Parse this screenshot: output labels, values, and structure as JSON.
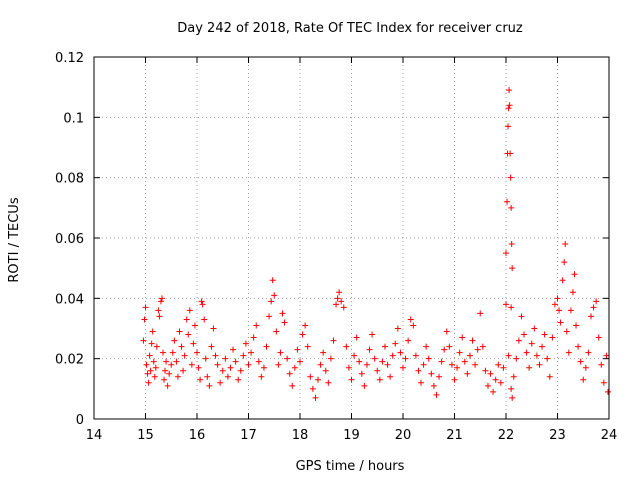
{
  "chart_data": {
    "type": "scatter",
    "title": "Day 242 of 2018, Rate Of TEC Index for receiver cruz",
    "xlabel": "GPS time / hours",
    "ylabel": "ROTI / TECUs",
    "xlim": [
      14,
      24
    ],
    "ylim": [
      0,
      0.12
    ],
    "x_ticks": [
      14,
      15,
      16,
      17,
      18,
      19,
      20,
      21,
      22,
      23,
      24
    ],
    "y_ticks": [
      0,
      0.02,
      0.04,
      0.06,
      0.08,
      0.1,
      0.12
    ],
    "x_tick_labels": [
      "14",
      "15",
      "16",
      "17",
      "18",
      "19",
      "20",
      "21",
      "22",
      "23",
      "24"
    ],
    "y_tick_labels": [
      "0",
      "0.02",
      "0.04",
      "0.06",
      "0.08",
      "0.1",
      "0.12"
    ],
    "grid": true,
    "marker": "+",
    "marker_color": "#ff0000",
    "series": [
      {
        "name": "ROTI",
        "points": [
          [
            14.96,
            0.026
          ],
          [
            14.98,
            0.033
          ],
          [
            15.0,
            0.037
          ],
          [
            15.02,
            0.018
          ],
          [
            15.04,
            0.015
          ],
          [
            15.06,
            0.012
          ],
          [
            15.08,
            0.021
          ],
          [
            15.1,
            0.016
          ],
          [
            15.12,
            0.025
          ],
          [
            15.14,
            0.029
          ],
          [
            15.16,
            0.019
          ],
          [
            15.18,
            0.014
          ],
          [
            15.2,
            0.017
          ],
          [
            15.22,
            0.024
          ],
          [
            15.25,
            0.036
          ],
          [
            15.27,
            0.034
          ],
          [
            15.3,
            0.039
          ],
          [
            15.32,
            0.04
          ],
          [
            15.34,
            0.022
          ],
          [
            15.36,
            0.013
          ],
          [
            15.38,
            0.016
          ],
          [
            15.4,
            0.019
          ],
          [
            15.43,
            0.011
          ],
          [
            15.46,
            0.015
          ],
          [
            15.5,
            0.018
          ],
          [
            15.53,
            0.022
          ],
          [
            15.56,
            0.026
          ],
          [
            15.6,
            0.019
          ],
          [
            15.63,
            0.014
          ],
          [
            15.66,
            0.029
          ],
          [
            15.7,
            0.024
          ],
          [
            15.73,
            0.016
          ],
          [
            15.76,
            0.021
          ],
          [
            15.8,
            0.033
          ],
          [
            15.83,
            0.028
          ],
          [
            15.86,
            0.036
          ],
          [
            15.9,
            0.018
          ],
          [
            15.93,
            0.025
          ],
          [
            15.96,
            0.031
          ],
          [
            16.0,
            0.022
          ],
          [
            16.03,
            0.017
          ],
          [
            16.06,
            0.013
          ],
          [
            16.09,
            0.039
          ],
          [
            16.11,
            0.038
          ],
          [
            16.14,
            0.033
          ],
          [
            16.17,
            0.02
          ],
          [
            16.2,
            0.014
          ],
          [
            16.24,
            0.011
          ],
          [
            16.28,
            0.024
          ],
          [
            16.32,
            0.03
          ],
          [
            16.36,
            0.021
          ],
          [
            16.4,
            0.018
          ],
          [
            16.45,
            0.012
          ],
          [
            16.5,
            0.016
          ],
          [
            16.55,
            0.02
          ],
          [
            16.6,
            0.014
          ],
          [
            16.65,
            0.017
          ],
          [
            16.7,
            0.023
          ],
          [
            16.75,
            0.019
          ],
          [
            16.8,
            0.013
          ],
          [
            16.85,
            0.016
          ],
          [
            16.9,
            0.021
          ],
          [
            16.95,
            0.025
          ],
          [
            17.0,
            0.018
          ],
          [
            17.05,
            0.022
          ],
          [
            17.1,
            0.027
          ],
          [
            17.15,
            0.031
          ],
          [
            17.2,
            0.019
          ],
          [
            17.25,
            0.014
          ],
          [
            17.3,
            0.017
          ],
          [
            17.35,
            0.024
          ],
          [
            17.4,
            0.034
          ],
          [
            17.44,
            0.039
          ],
          [
            17.47,
            0.046
          ],
          [
            17.5,
            0.041
          ],
          [
            17.54,
            0.029
          ],
          [
            17.58,
            0.018
          ],
          [
            17.62,
            0.022
          ],
          [
            17.66,
            0.035
          ],
          [
            17.7,
            0.032
          ],
          [
            17.75,
            0.02
          ],
          [
            17.8,
            0.015
          ],
          [
            17.85,
            0.011
          ],
          [
            17.9,
            0.017
          ],
          [
            17.95,
            0.023
          ],
          [
            18.0,
            0.019
          ],
          [
            18.05,
            0.028
          ],
          [
            18.1,
            0.031
          ],
          [
            18.15,
            0.024
          ],
          [
            18.2,
            0.014
          ],
          [
            18.25,
            0.01
          ],
          [
            18.3,
            0.007
          ],
          [
            18.35,
            0.013
          ],
          [
            18.4,
            0.018
          ],
          [
            18.45,
            0.022
          ],
          [
            18.5,
            0.016
          ],
          [
            18.55,
            0.012
          ],
          [
            18.6,
            0.02
          ],
          [
            18.65,
            0.026
          ],
          [
            18.7,
            0.038
          ],
          [
            18.73,
            0.04
          ],
          [
            18.76,
            0.042
          ],
          [
            18.8,
            0.039
          ],
          [
            18.85,
            0.037
          ],
          [
            18.9,
            0.024
          ],
          [
            18.95,
            0.017
          ],
          [
            19.0,
            0.013
          ],
          [
            19.05,
            0.021
          ],
          [
            19.1,
            0.027
          ],
          [
            19.15,
            0.019
          ],
          [
            19.2,
            0.015
          ],
          [
            19.25,
            0.011
          ],
          [
            19.3,
            0.018
          ],
          [
            19.35,
            0.023
          ],
          [
            19.4,
            0.028
          ],
          [
            19.45,
            0.02
          ],
          [
            19.5,
            0.016
          ],
          [
            19.55,
            0.013
          ],
          [
            19.6,
            0.019
          ],
          [
            19.65,
            0.024
          ],
          [
            19.7,
            0.018
          ],
          [
            19.75,
            0.014
          ],
          [
            19.8,
            0.021
          ],
          [
            19.85,
            0.025
          ],
          [
            19.9,
            0.03
          ],
          [
            19.95,
            0.022
          ],
          [
            20.0,
            0.017
          ],
          [
            20.05,
            0.02
          ],
          [
            20.1,
            0.026
          ],
          [
            20.15,
            0.033
          ],
          [
            20.2,
            0.031
          ],
          [
            20.25,
            0.021
          ],
          [
            20.3,
            0.016
          ],
          [
            20.35,
            0.012
          ],
          [
            20.4,
            0.018
          ],
          [
            20.45,
            0.024
          ],
          [
            20.5,
            0.02
          ],
          [
            20.55,
            0.015
          ],
          [
            20.6,
            0.011
          ],
          [
            20.65,
            0.008
          ],
          [
            20.7,
            0.014
          ],
          [
            20.75,
            0.019
          ],
          [
            20.8,
            0.023
          ],
          [
            20.85,
            0.029
          ],
          [
            20.9,
            0.024
          ],
          [
            20.95,
            0.018
          ],
          [
            21.0,
            0.013
          ],
          [
            21.05,
            0.017
          ],
          [
            21.1,
            0.022
          ],
          [
            21.15,
            0.027
          ],
          [
            21.2,
            0.019
          ],
          [
            21.25,
            0.015
          ],
          [
            21.3,
            0.021
          ],
          [
            21.35,
            0.026
          ],
          [
            21.4,
            0.018
          ],
          [
            21.45,
            0.023
          ],
          [
            21.5,
            0.035
          ],
          [
            21.55,
            0.024
          ],
          [
            21.6,
            0.016
          ],
          [
            21.65,
            0.011
          ],
          [
            21.7,
            0.015
          ],
          [
            21.75,
            0.009
          ],
          [
            21.8,
            0.013
          ],
          [
            21.85,
            0.018
          ],
          [
            21.9,
            0.012
          ],
          [
            21.95,
            0.017
          ],
          [
            22.0,
            0.055
          ],
          [
            22.02,
            0.072
          ],
          [
            22.03,
            0.088
          ],
          [
            22.04,
            0.097
          ],
          [
            22.05,
            0.103
          ],
          [
            22.06,
            0.109
          ],
          [
            22.07,
            0.104
          ],
          [
            22.08,
            0.088
          ],
          [
            22.09,
            0.08
          ],
          [
            22.1,
            0.07
          ],
          [
            22.11,
            0.058
          ],
          [
            22.12,
            0.05
          ],
          [
            22.0,
            0.038
          ],
          [
            22.1,
            0.037
          ],
          [
            22.05,
            0.021
          ],
          [
            22.1,
            0.01
          ],
          [
            22.12,
            0.007
          ],
          [
            22.15,
            0.014
          ],
          [
            22.2,
            0.02
          ],
          [
            22.25,
            0.026
          ],
          [
            22.3,
            0.034
          ],
          [
            22.35,
            0.028
          ],
          [
            22.4,
            0.022
          ],
          [
            22.45,
            0.017
          ],
          [
            22.5,
            0.025
          ],
          [
            22.55,
            0.03
          ],
          [
            22.6,
            0.021
          ],
          [
            22.65,
            0.018
          ],
          [
            22.7,
            0.024
          ],
          [
            22.75,
            0.028
          ],
          [
            22.8,
            0.02
          ],
          [
            22.85,
            0.014
          ],
          [
            22.9,
            0.027
          ],
          [
            22.95,
            0.038
          ],
          [
            23.0,
            0.04
          ],
          [
            23.03,
            0.036
          ],
          [
            23.06,
            0.032
          ],
          [
            23.1,
            0.046
          ],
          [
            23.13,
            0.052
          ],
          [
            23.15,
            0.058
          ],
          [
            23.18,
            0.029
          ],
          [
            23.22,
            0.022
          ],
          [
            23.26,
            0.036
          ],
          [
            23.3,
            0.042
          ],
          [
            23.33,
            0.048
          ],
          [
            23.36,
            0.031
          ],
          [
            23.4,
            0.024
          ],
          [
            23.45,
            0.019
          ],
          [
            23.5,
            0.013
          ],
          [
            23.55,
            0.017
          ],
          [
            23.6,
            0.022
          ],
          [
            23.65,
            0.034
          ],
          [
            23.7,
            0.037
          ],
          [
            23.75,
            0.039
          ],
          [
            23.8,
            0.027
          ],
          [
            23.85,
            0.018
          ],
          [
            23.9,
            0.012
          ],
          [
            23.95,
            0.021
          ],
          [
            23.98,
            0.009
          ]
        ]
      }
    ]
  }
}
